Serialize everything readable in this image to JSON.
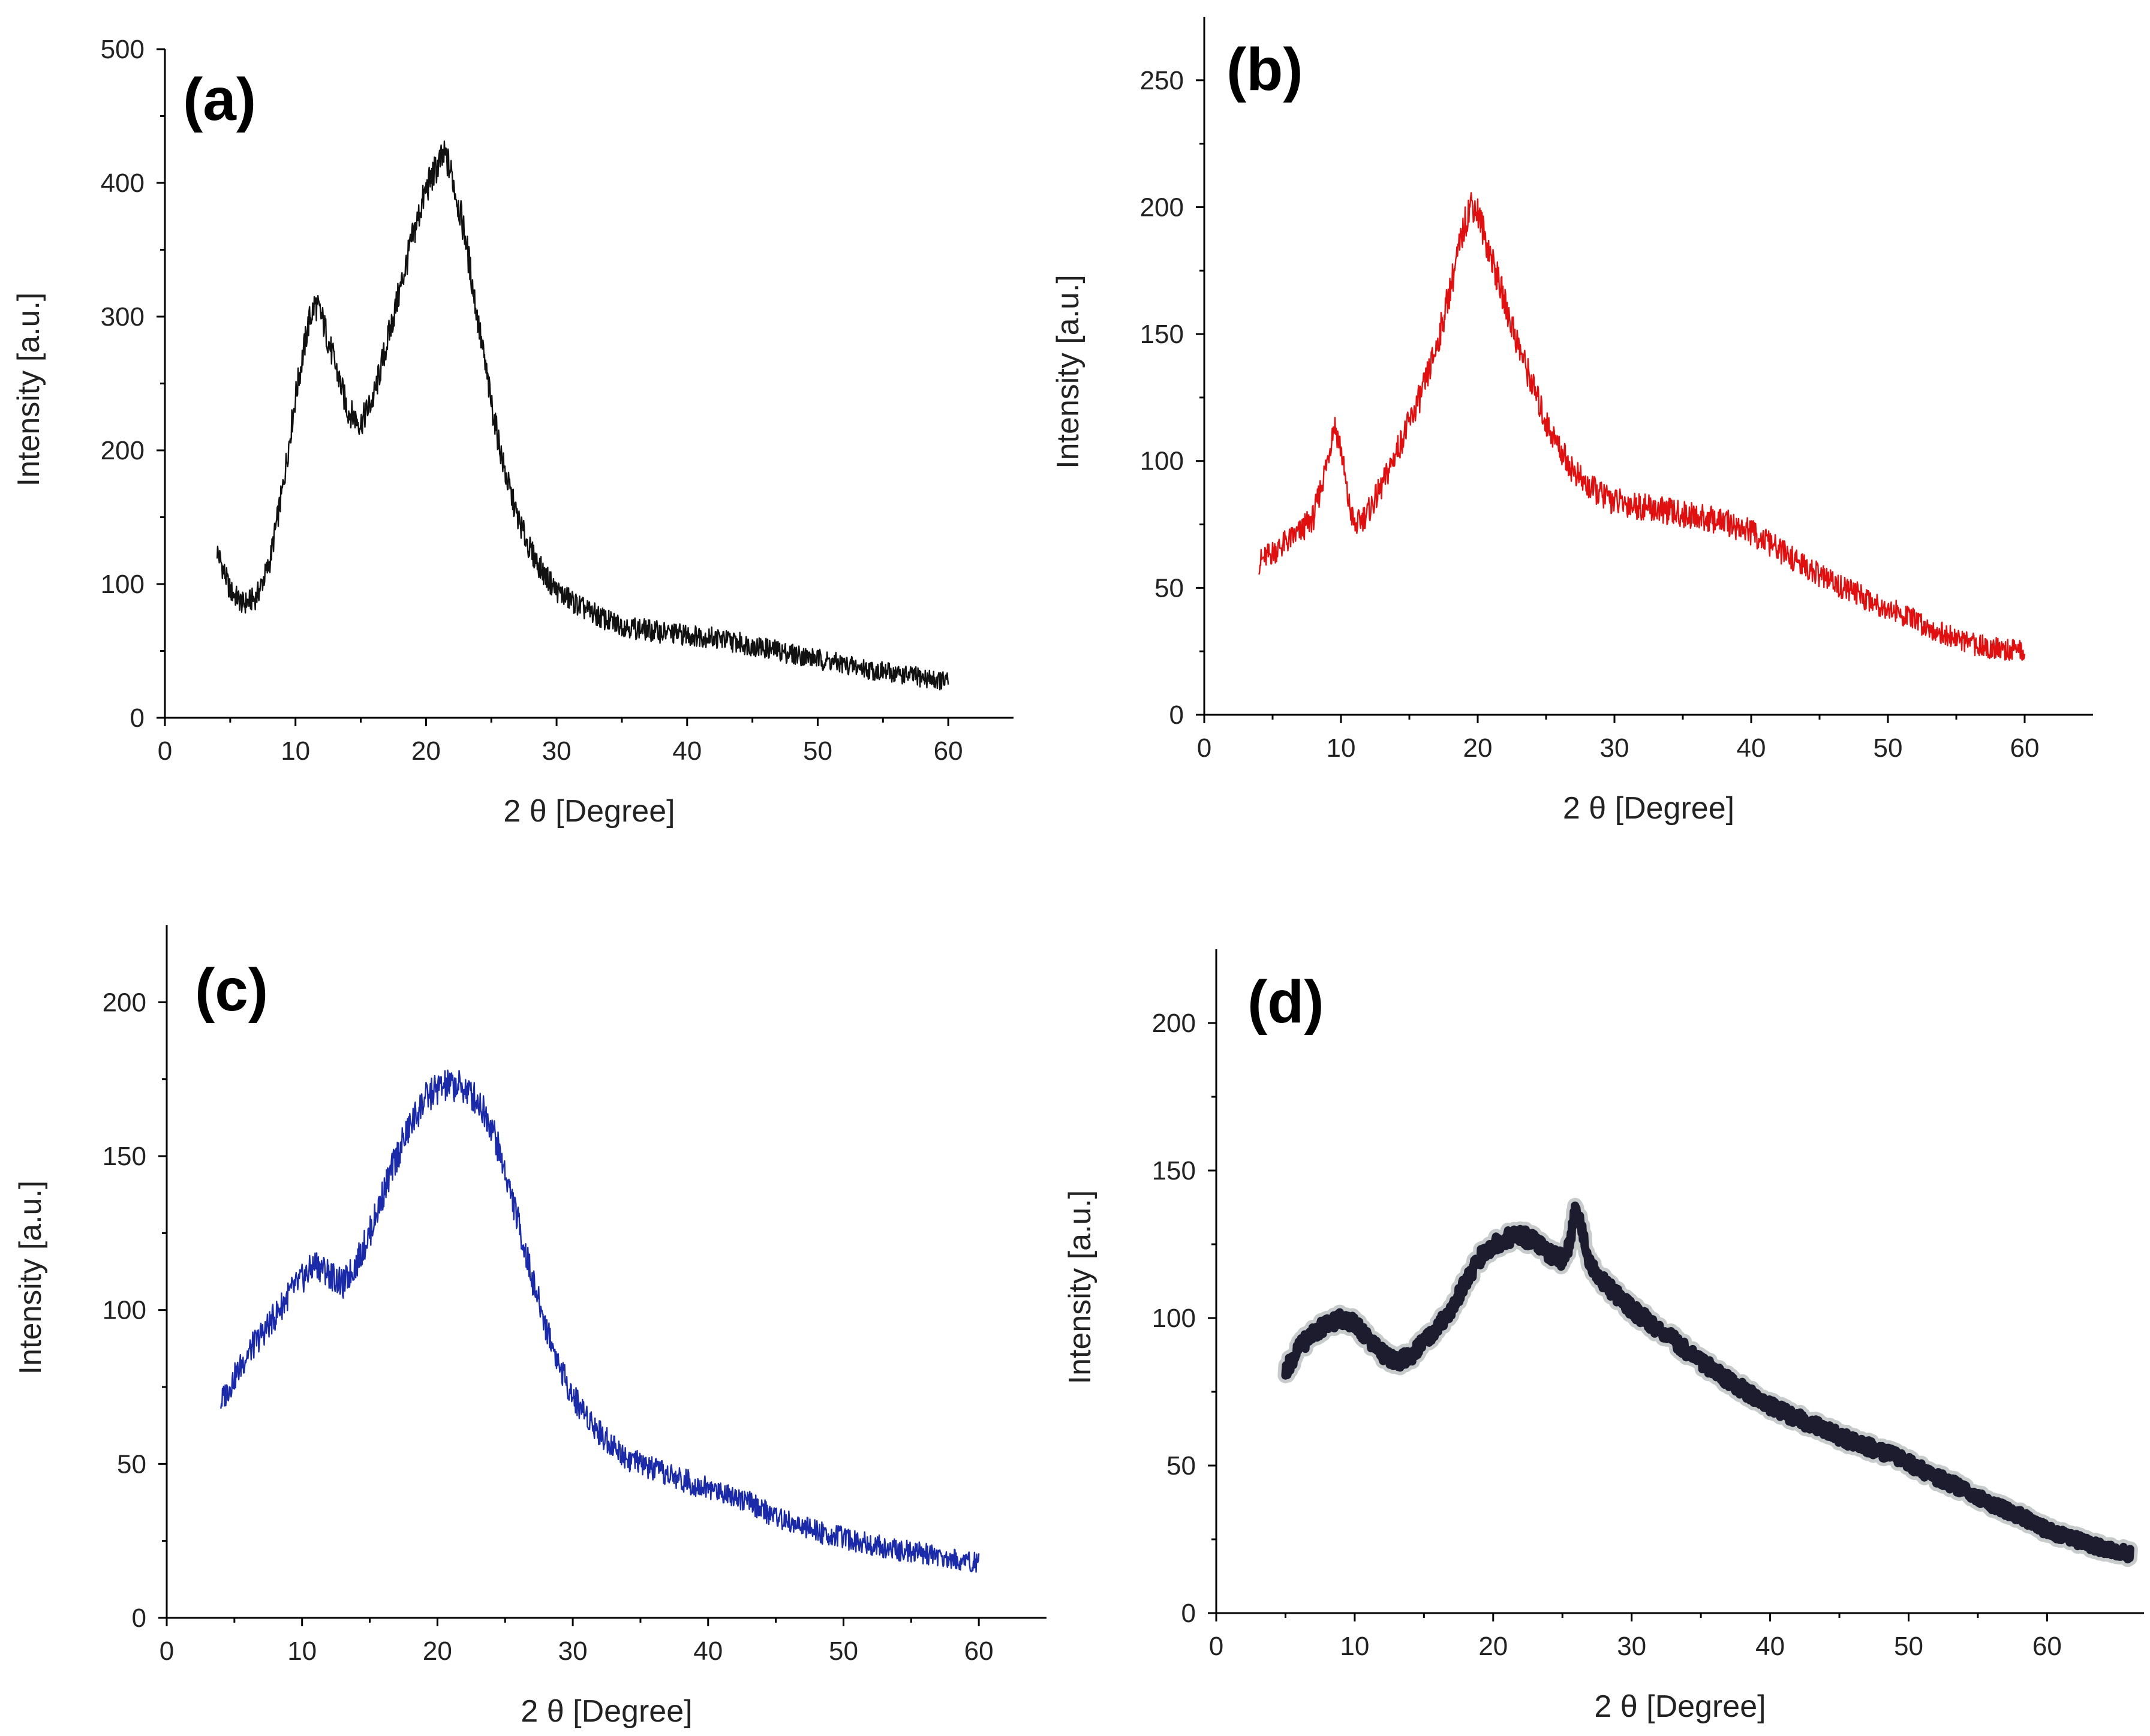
{
  "chart_data": [
    {
      "type": "line",
      "panel_label": "(a)",
      "xlabel": "2 θ [Degree]",
      "ylabel": "Intensity [a.u.]",
      "xlim": [
        0,
        65
      ],
      "ylim": [
        0,
        500
      ],
      "xticks": [
        0,
        10,
        20,
        30,
        40,
        50,
        60
      ],
      "yticks": [
        0,
        100,
        200,
        300,
        400,
        500
      ],
      "color": "#111111",
      "series": [
        {
          "x": [
            4,
            5,
            6,
            7,
            8,
            9,
            10,
            11,
            11.5,
            12,
            13,
            14,
            15,
            16,
            17,
            18,
            19,
            20,
            21,
            21.5,
            22,
            23,
            24,
            25,
            26,
            27,
            28,
            29,
            30,
            32,
            34,
            36,
            38,
            40,
            42,
            44,
            46,
            48,
            50,
            52,
            54,
            56,
            58,
            60
          ],
          "y": [
            125,
            95,
            85,
            90,
            115,
            170,
            240,
            295,
            310,
            300,
            265,
            230,
            220,
            240,
            280,
            320,
            360,
            395,
            415,
            420,
            405,
            360,
            295,
            235,
            185,
            150,
            125,
            108,
            95,
            82,
            72,
            67,
            64,
            62,
            60,
            56,
            52,
            48,
            44,
            40,
            36,
            33,
            30,
            27
          ]
        }
      ]
    },
    {
      "type": "line",
      "panel_label": "(b)",
      "xlabel": "2 θ [Degree]",
      "ylabel": "Intensity [a.u.]",
      "xlim": [
        0,
        65
      ],
      "ylim": [
        0,
        275
      ],
      "xticks": [
        0,
        10,
        20,
        30,
        40,
        50,
        60
      ],
      "yticks": [
        0,
        50,
        100,
        150,
        200,
        250
      ],
      "color": "#e01010",
      "series": [
        {
          "x": [
            4,
            5,
            6,
            7,
            8,
            9,
            9.5,
            10,
            10.5,
            11,
            12,
            13,
            14,
            15,
            16,
            17,
            18,
            19,
            19.5,
            20,
            21,
            22,
            23,
            24,
            25,
            26,
            27,
            28,
            30,
            32,
            34,
            36,
            38,
            40,
            42,
            44,
            46,
            48,
            50,
            52,
            54,
            56,
            58,
            60
          ],
          "y": [
            60,
            64,
            68,
            72,
            78,
            100,
            115,
            105,
            85,
            74,
            80,
            90,
            103,
            115,
            128,
            145,
            168,
            192,
            202,
            198,
            180,
            162,
            145,
            130,
            115,
            105,
            96,
            90,
            84,
            82,
            80,
            78,
            76,
            72,
            65,
            58,
            52,
            47,
            42,
            37,
            32,
            28,
            26,
            25
          ]
        }
      ]
    },
    {
      "type": "line",
      "panel_label": "(c)",
      "xlabel": "2 θ [Degree]",
      "ylabel": "Intensity [a.u.]",
      "xlim": [
        0,
        65
      ],
      "ylim": [
        0,
        225
      ],
      "xticks": [
        0,
        10,
        20,
        30,
        40,
        50,
        60
      ],
      "yticks": [
        0,
        50,
        100,
        150,
        200
      ],
      "color": "#1a2aa8",
      "series": [
        {
          "x": [
            4,
            5,
            6,
            7,
            8,
            9,
            10,
            11,
            12,
            13,
            14,
            15,
            16,
            17,
            18,
            19,
            20,
            21,
            22,
            23,
            24,
            25,
            26,
            27,
            28,
            29,
            30,
            32,
            34,
            36,
            38,
            40,
            42,
            44,
            46,
            48,
            50,
            52,
            54,
            56,
            58,
            60
          ],
          "y": [
            70,
            78,
            86,
            92,
            98,
            105,
            110,
            115,
            112,
            108,
            115,
            125,
            138,
            150,
            160,
            168,
            172,
            173,
            172,
            168,
            160,
            145,
            128,
            110,
            95,
            82,
            72,
            60,
            52,
            48,
            45,
            42,
            40,
            35,
            31,
            28,
            26,
            24,
            22,
            21,
            19,
            18
          ]
        }
      ]
    },
    {
      "type": "line",
      "panel_label": "(d)",
      "xlabel": "2 θ [Degree]",
      "ylabel": "Intensity [a.u.]",
      "xlim": [
        0,
        67
      ],
      "ylim": [
        0,
        225
      ],
      "xticks": [
        0,
        10,
        20,
        30,
        40,
        50,
        60
      ],
      "yticks": [
        0,
        50,
        100,
        150,
        200
      ],
      "color": "#1c1c2e",
      "series": [
        {
          "x": [
            5,
            6,
            7,
            8,
            9,
            10,
            11,
            12,
            13,
            14,
            15,
            16,
            17,
            18,
            19,
            20,
            21,
            22,
            23,
            24,
            25,
            25.5,
            26,
            26.5,
            27,
            28,
            30,
            32,
            34,
            36,
            38,
            40,
            42,
            44,
            46,
            48,
            50,
            52,
            54,
            56,
            58,
            60,
            62,
            64,
            66
          ],
          "y": [
            82,
            90,
            95,
            98,
            100,
            98,
            93,
            88,
            85,
            87,
            92,
            97,
            103,
            112,
            120,
            125,
            127,
            128,
            126,
            122,
            120,
            125,
            138,
            128,
            118,
            112,
            103,
            96,
            89,
            82,
            76,
            70,
            66,
            62,
            58,
            55,
            51,
            46,
            42,
            37,
            33,
            28,
            25,
            22,
            20
          ]
        }
      ]
    }
  ]
}
